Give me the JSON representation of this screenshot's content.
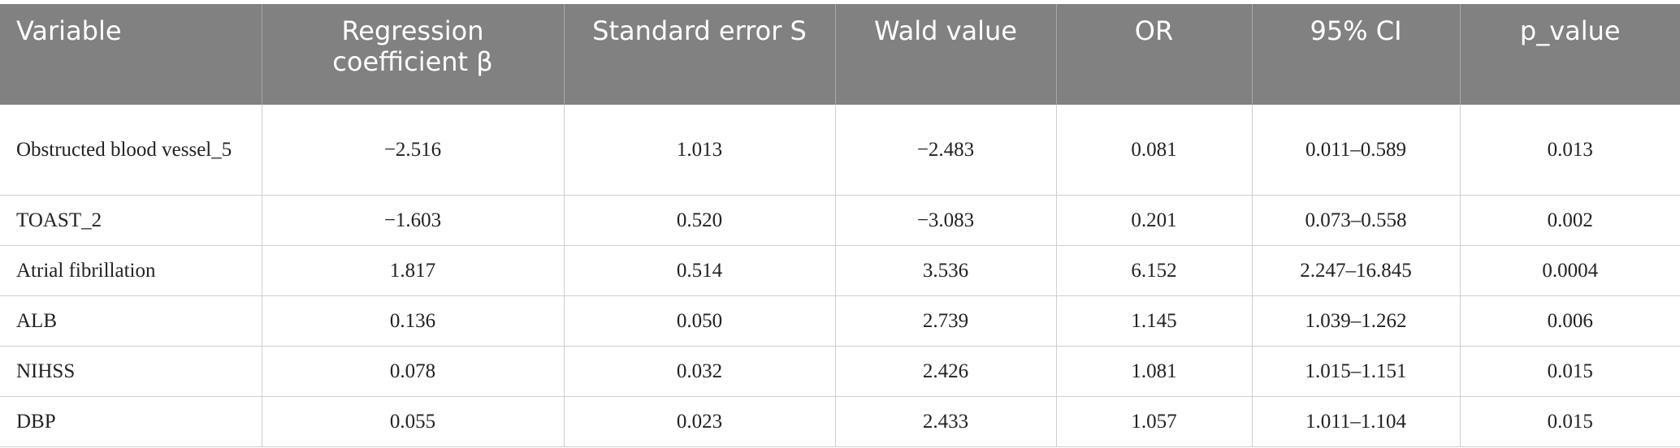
{
  "table": {
    "header": [
      "Variable",
      "Regression coefficient β",
      "Standard error S",
      "Wald value",
      "OR",
      "95% CI",
      "p_value"
    ],
    "rows": [
      [
        "Obstructed blood vessel_5",
        "−2.516",
        "1.013",
        "−2.483",
        "0.081",
        "0.011–0.589",
        "0.013"
      ],
      [
        "TOAST_2",
        "−1.603",
        "0.520",
        "−3.083",
        "0.201",
        "0.073–0.558",
        "0.002"
      ],
      [
        "Atrial fibrillation",
        "1.817",
        "0.514",
        "3.536",
        "6.152",
        "2.247–16.845",
        "0.0004"
      ],
      [
        "ALB",
        "0.136",
        "0.050",
        "2.739",
        "1.145",
        "1.039–1.262",
        "0.006"
      ],
      [
        "NIHSS",
        "0.078",
        "0.032",
        "2.426",
        "1.081",
        "1.015–1.151",
        "0.015"
      ],
      [
        "DBP",
        "0.055",
        "0.023",
        "2.433",
        "1.057",
        "1.011–1.104",
        "0.015"
      ]
    ]
  }
}
